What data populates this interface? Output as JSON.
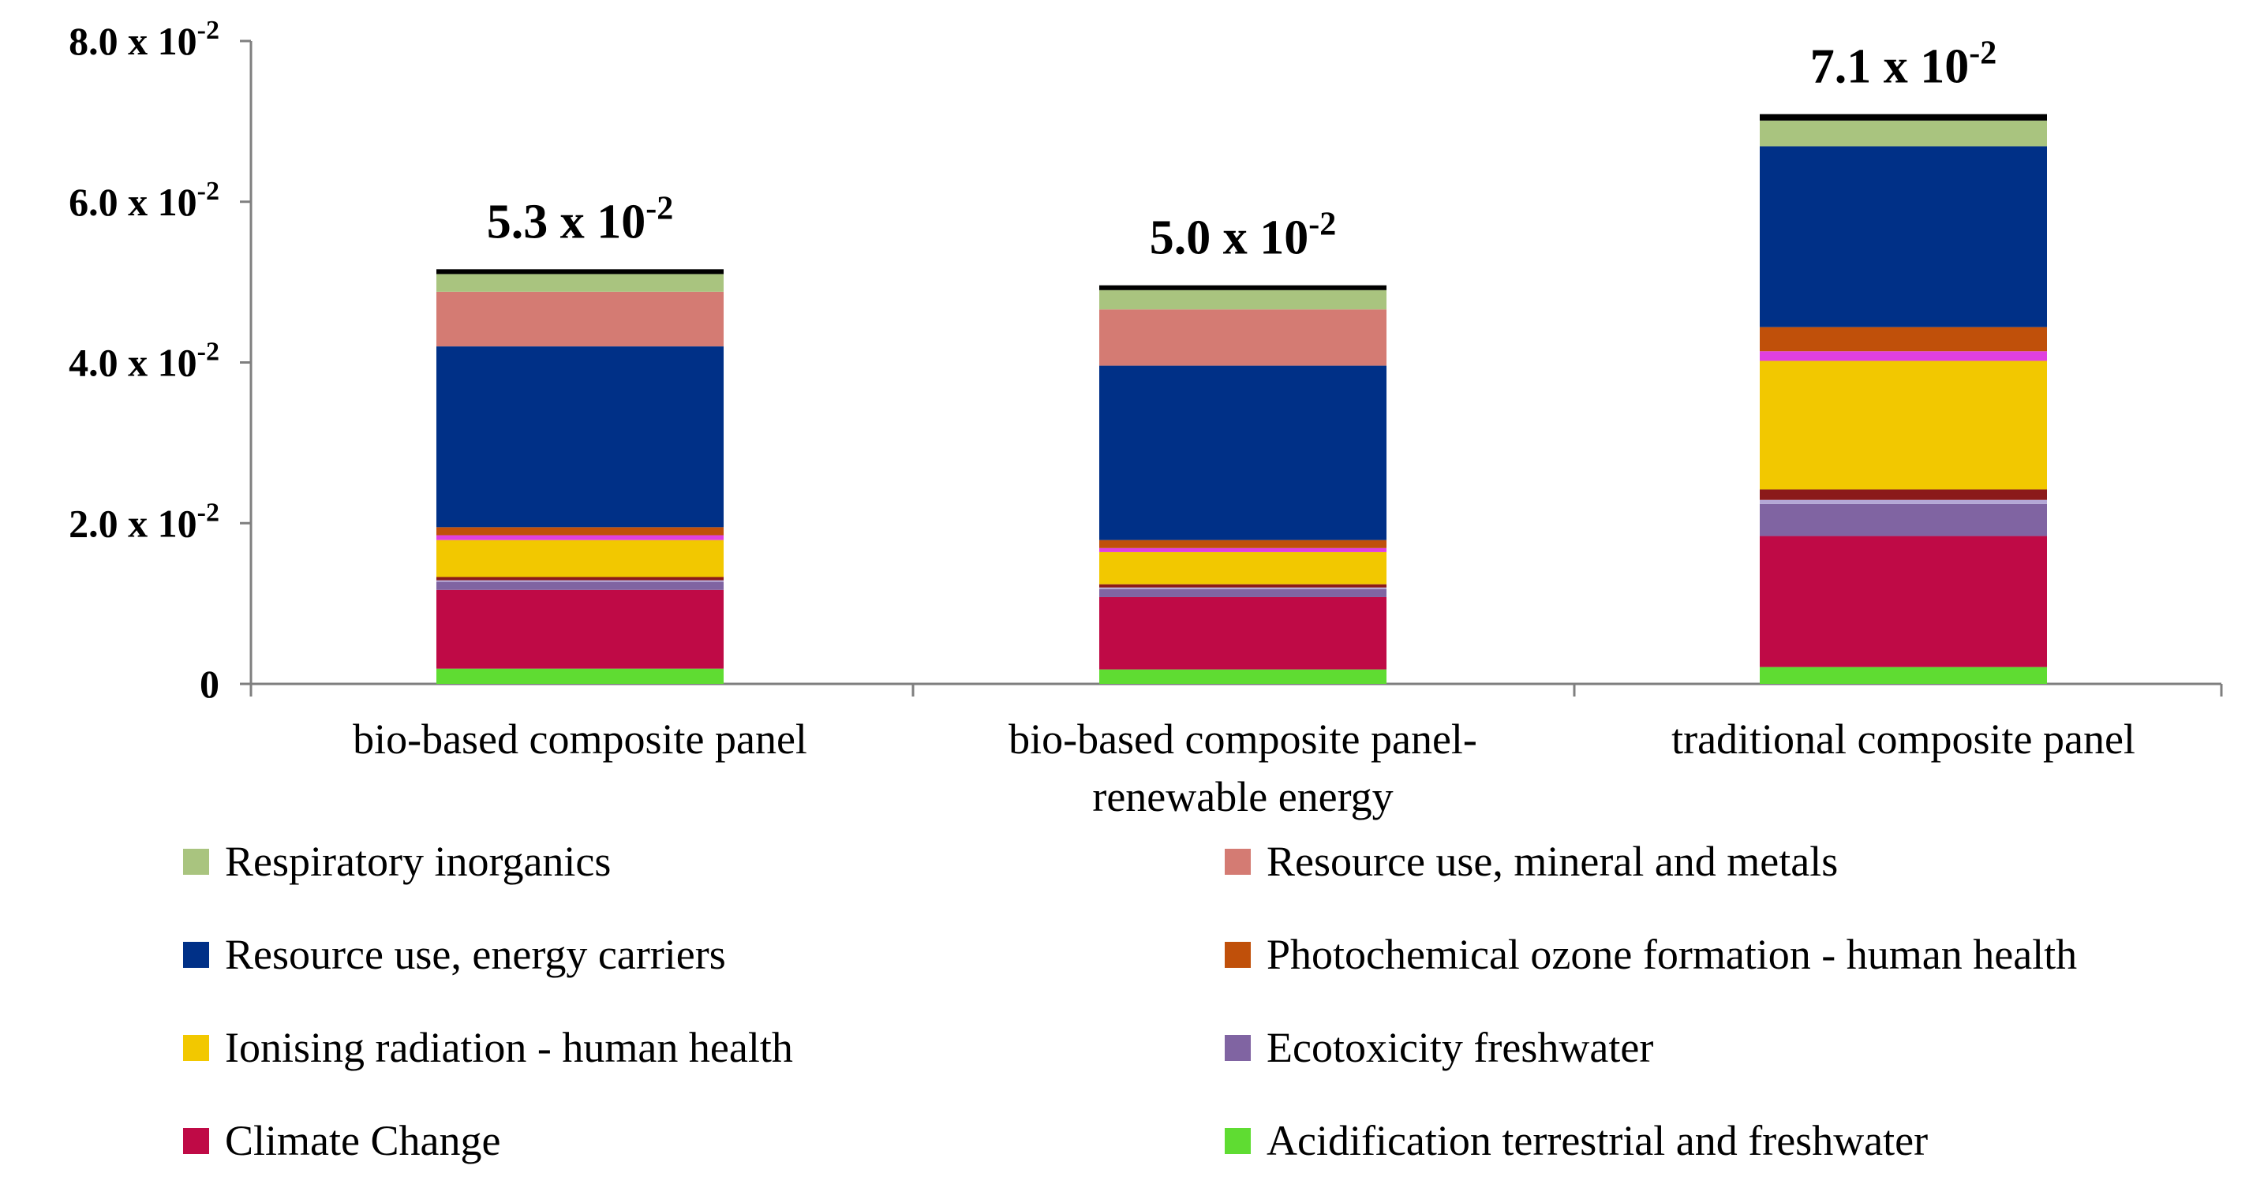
{
  "chart_data": {
    "type": "bar",
    "stacked": true,
    "title": "",
    "xlabel": "",
    "ylabel": "",
    "ylim": [
      0,
      0.08
    ],
    "y_ticks": [
      {
        "value": 0,
        "base": "0",
        "exp": ""
      },
      {
        "value": 0.02,
        "base": "2.0 x 10",
        "exp": "-2"
      },
      {
        "value": 0.04,
        "base": "4.0 x 10",
        "exp": "-2"
      },
      {
        "value": 0.06,
        "base": "6.0 x 10",
        "exp": "-2"
      },
      {
        "value": 0.08,
        "base": "8.0 x 10",
        "exp": "-2"
      }
    ],
    "categories": [
      [
        "bio-based composite panel"
      ],
      [
        "bio-based composite panel-",
        "renewable energy"
      ],
      [
        "traditional composite panel"
      ]
    ],
    "totals": [
      {
        "base": "5.3 x 10",
        "exp": "-2",
        "value": 0.053
      },
      {
        "base": "5.0 x 10",
        "exp": "-2",
        "value": 0.05
      },
      {
        "base": "7.1 x 10",
        "exp": "-2",
        "value": 0.071
      }
    ],
    "series": [
      {
        "name": "Acidification terrestrial and freshwater",
        "color": "#5fdc32",
        "values": [
          0.0019,
          0.0018,
          0.0021
        ]
      },
      {
        "name": "Climate Change",
        "color": "#bf0a46",
        "values": [
          0.0098,
          0.009,
          0.0163
        ]
      },
      {
        "name": "Ecotoxicity freshwater",
        "color": "#8064a2",
        "values": [
          0.001,
          0.001,
          0.004
        ]
      },
      {
        "name": "Other (light purple)",
        "color": "#b4a7d6",
        "values": [
          0.0002,
          0.0002,
          0.0005
        ],
        "in_legend": false
      },
      {
        "name": "Other (dark red)",
        "color": "#8b1a1a",
        "values": [
          0.0004,
          0.0004,
          0.0013
        ],
        "in_legend": false
      },
      {
        "name": "Ionising radiation - human health",
        "color": "#f2c800",
        "values": [
          0.0046,
          0.004,
          0.016
        ]
      },
      {
        "name": "Other (magenta)",
        "color": "#e040e0",
        "values": [
          0.0006,
          0.0005,
          0.0012
        ],
        "in_legend": false
      },
      {
        "name": "Photochemical ozone formation - human health",
        "color": "#c0500a",
        "values": [
          0.001,
          0.001,
          0.003
        ]
      },
      {
        "name": "Resource use, energy carriers",
        "color": "#003087",
        "values": [
          0.0225,
          0.0217,
          0.0225
        ]
      },
      {
        "name": "Resource use, mineral and metals",
        "color": "#d47b73",
        "values": [
          0.0068,
          0.007,
          0.0
        ]
      },
      {
        "name": "Respiratory inorganics",
        "color": "#a9c47f",
        "values": [
          0.0022,
          0.0024,
          0.0032
        ]
      },
      {
        "name": "Other (black)",
        "color": "#000000",
        "values": [
          0.0006,
          0.0006,
          0.0008
        ],
        "in_legend": false
      }
    ],
    "legend": [
      {
        "label": "Respiratory inorganics",
        "color": "#a9c47f"
      },
      {
        "label": "Resource use, mineral and metals",
        "color": "#d47b73"
      },
      {
        "label": "Resource use, energy carriers",
        "color": "#003087"
      },
      {
        "label": "Photochemical ozone formation - human health",
        "color": "#c0500a"
      },
      {
        "label": "Ionising radiation - human health",
        "color": "#f2c800"
      },
      {
        "label": "Ecotoxicity freshwater",
        "color": "#8064a2"
      },
      {
        "label": "Climate Change",
        "color": "#bf0a46"
      },
      {
        "label": "Acidification terrestrial and freshwater",
        "color": "#5fdc32"
      }
    ],
    "legend_position": "bottom",
    "grid": false
  }
}
